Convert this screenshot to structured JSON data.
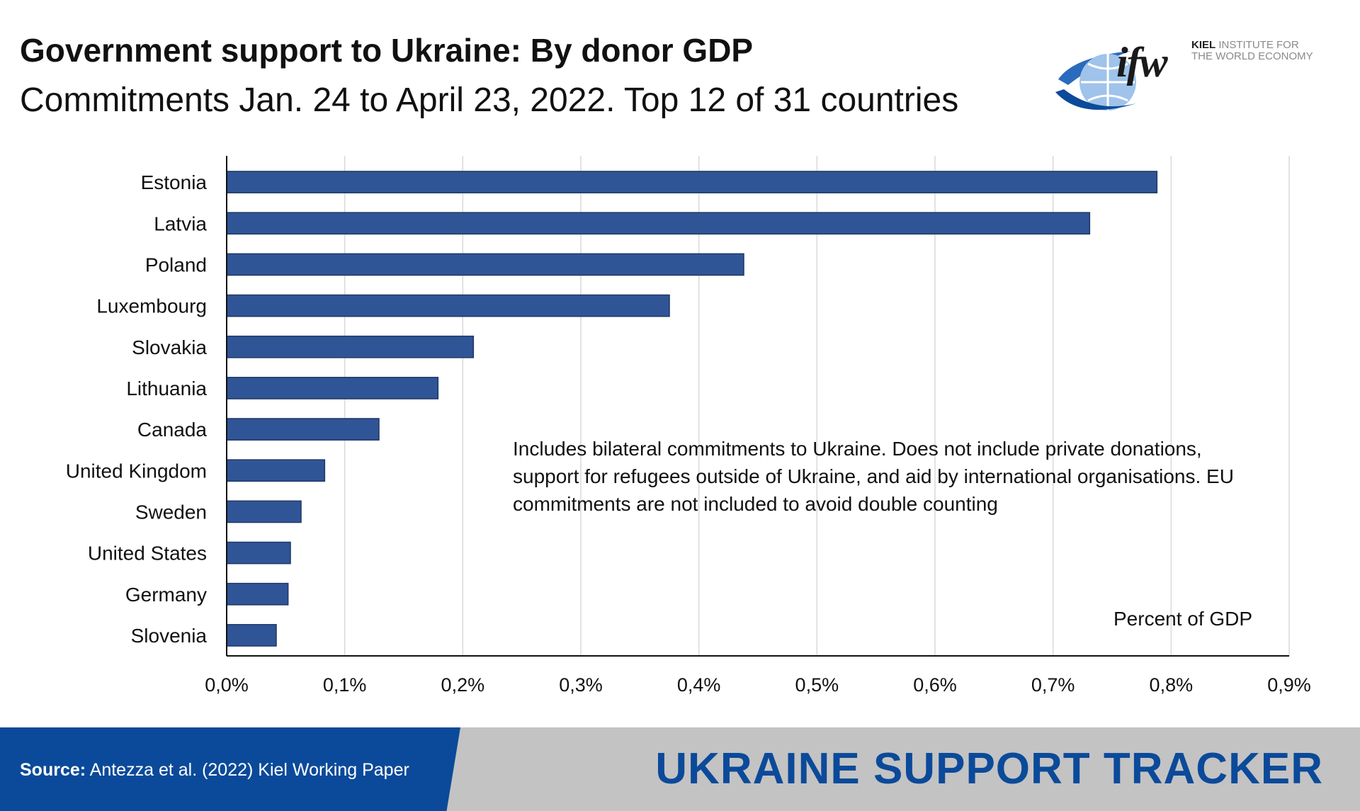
{
  "header": {
    "title": "Government support to Ukraine: By donor GDP",
    "subtitle": "Commitments Jan. 24 to April 23, 2022. Top 12 of 31 countries"
  },
  "logo": {
    "mark": "ifw",
    "line1_bold": "KIEL",
    "line1_rest": " INSTITUTE FOR",
    "line2": "THE WORLD ECONOMY",
    "icon": "globe-icon"
  },
  "chart_data": {
    "type": "bar",
    "orientation": "horizontal",
    "categories": [
      "Estonia",
      "Latvia",
      "Poland",
      "Luxembourg",
      "Slovakia",
      "Lithuania",
      "Canada",
      "United Kingdom",
      "Sweden",
      "United States",
      "Germany",
      "Slovenia"
    ],
    "values": [
      0.788,
      0.731,
      0.438,
      0.375,
      0.209,
      0.179,
      0.129,
      0.083,
      0.063,
      0.054,
      0.052,
      0.042
    ],
    "xlim": [
      0,
      0.9
    ],
    "xticks": [
      "0,0%",
      "0,1%",
      "0,2%",
      "0,3%",
      "0,4%",
      "0,5%",
      "0,6%",
      "0,7%",
      "0,8%",
      "0,9%"
    ],
    "unit_label": "Percent of GDP",
    "note": "Includes bilateral commitments to Ukraine. Does not include private donations, support for refugees outside of Ukraine, and aid by international organisations. EU commitments are not included to avoid double counting",
    "grid": "vertical",
    "bar_color": "#2f5597",
    "grid_color": "#d9d9d9"
  },
  "footer": {
    "source_label": "Source:",
    "source_text": " Antezza et al. (2022) Kiel Working Paper",
    "tracker": "UKRAINE SUPPORT TRACKER",
    "brand_color": "#0b4a9a"
  }
}
